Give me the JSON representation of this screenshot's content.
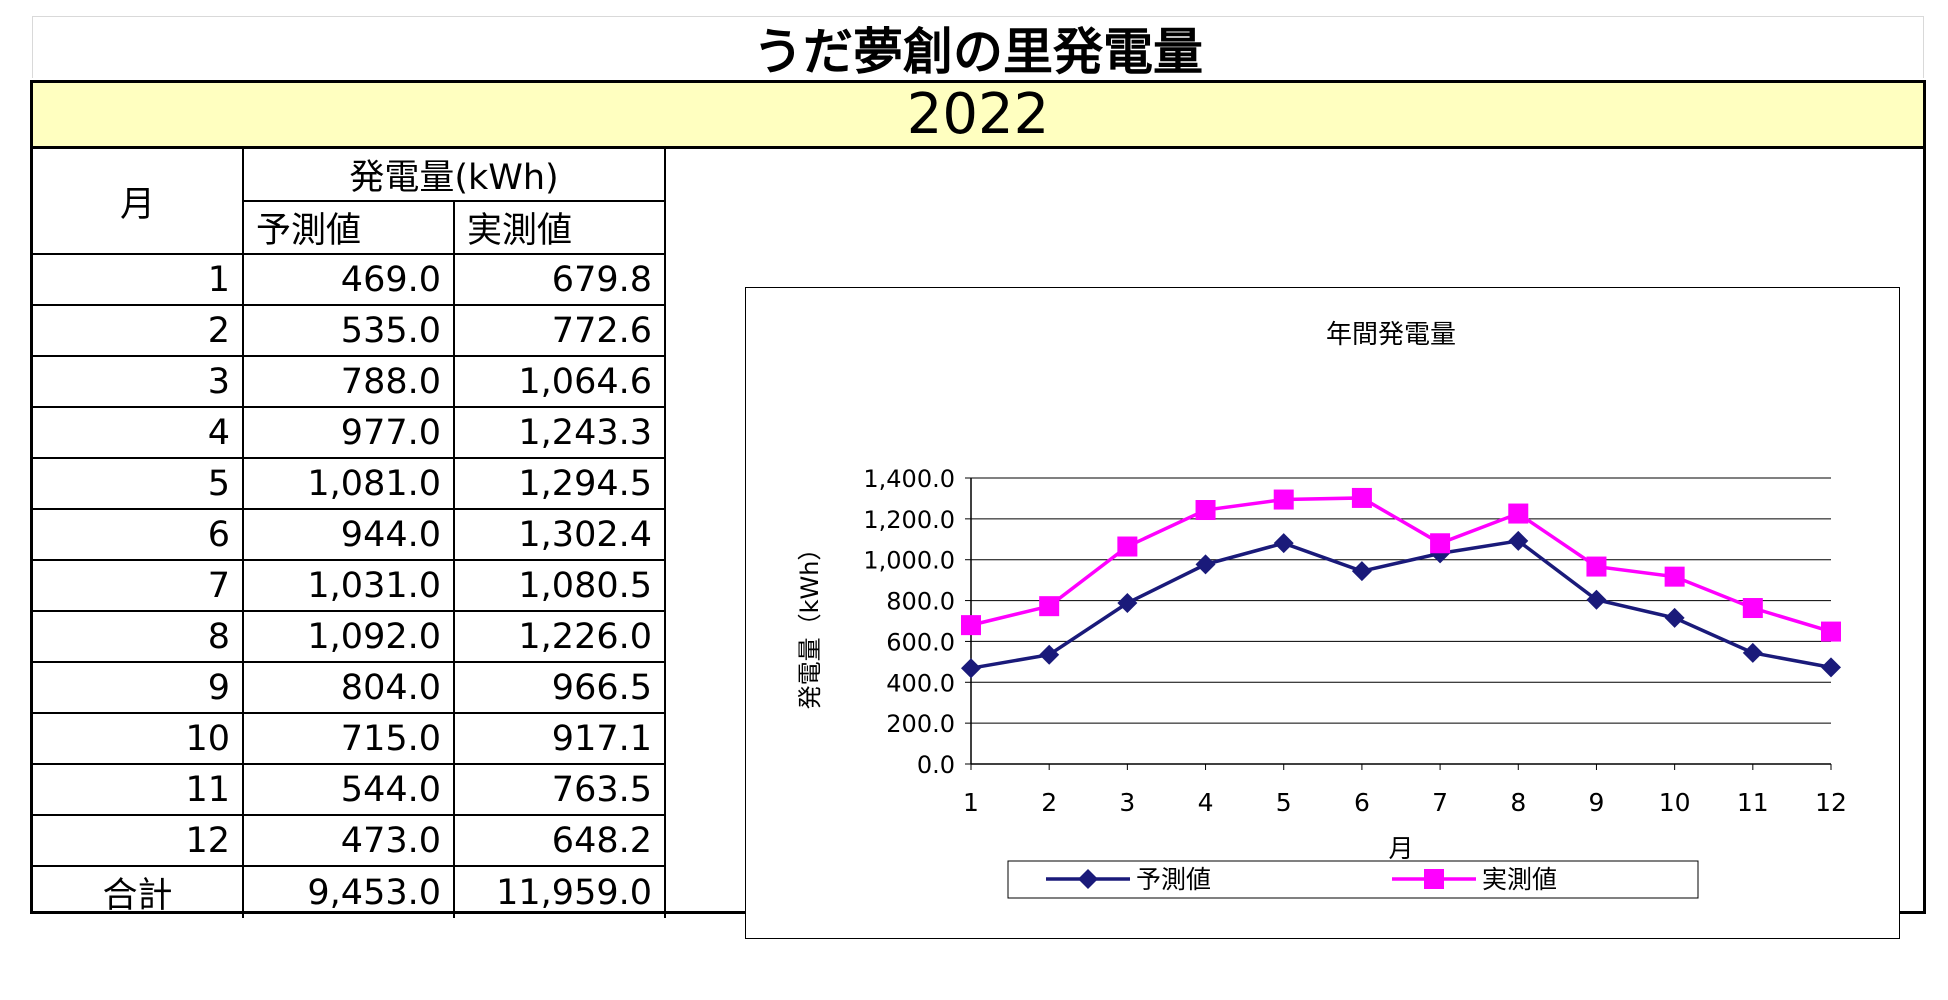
{
  "page_title": "うだ夢創の里発電量",
  "year": "2022",
  "table": {
    "month_header": "月",
    "group_header": "発電量(kWh)",
    "col_forecast": "予測値",
    "col_actual": "実測値",
    "rows": [
      {
        "month": "1",
        "forecast": "469.0",
        "actual": "679.8"
      },
      {
        "month": "2",
        "forecast": "535.0",
        "actual": "772.6"
      },
      {
        "month": "3",
        "forecast": "788.0",
        "actual": "1,064.6"
      },
      {
        "month": "4",
        "forecast": "977.0",
        "actual": "1,243.3"
      },
      {
        "month": "5",
        "forecast": "1,081.0",
        "actual": "1,294.5"
      },
      {
        "month": "6",
        "forecast": "944.0",
        "actual": "1,302.4"
      },
      {
        "month": "7",
        "forecast": "1,031.0",
        "actual": "1,080.5"
      },
      {
        "month": "8",
        "forecast": "1,092.0",
        "actual": "1,226.0"
      },
      {
        "month": "9",
        "forecast": "804.0",
        "actual": "966.5"
      },
      {
        "month": "10",
        "forecast": "715.0",
        "actual": "917.1"
      },
      {
        "month": "11",
        "forecast": "544.0",
        "actual": "763.5"
      },
      {
        "month": "12",
        "forecast": "473.0",
        "actual": "648.2"
      }
    ],
    "total": {
      "label": "合計",
      "forecast": "9,453.0",
      "actual": "11,959.0"
    }
  },
  "chart_data": {
    "type": "line",
    "title": "年間発電量",
    "xlabel": "月",
    "ylabel": "発電量（kWh）",
    "x": [
      1,
      2,
      3,
      4,
      5,
      6,
      7,
      8,
      9,
      10,
      11,
      12
    ],
    "ylim": [
      0,
      1400
    ],
    "yticks": [
      0,
      200,
      400,
      600,
      800,
      1000,
      1200,
      1400
    ],
    "ytick_labels": [
      "0.0",
      "200.0",
      "400.0",
      "600.0",
      "800.0",
      "1,000.0",
      "1,200.0",
      "1,400.0"
    ],
    "grid": true,
    "legend_position": "bottom",
    "series": [
      {
        "name": "予測値",
        "color": "#1a1a7a",
        "marker": "diamond",
        "values": [
          469.0,
          535.0,
          788.0,
          977.0,
          1081.0,
          944.0,
          1031.0,
          1092.0,
          804.0,
          715.0,
          544.0,
          473.0
        ]
      },
      {
        "name": "実測値",
        "color": "#ff00ff",
        "marker": "square",
        "values": [
          679.8,
          772.6,
          1064.6,
          1243.3,
          1294.5,
          1302.4,
          1080.5,
          1226.0,
          966.5,
          917.1,
          763.5,
          648.2
        ]
      }
    ]
  }
}
